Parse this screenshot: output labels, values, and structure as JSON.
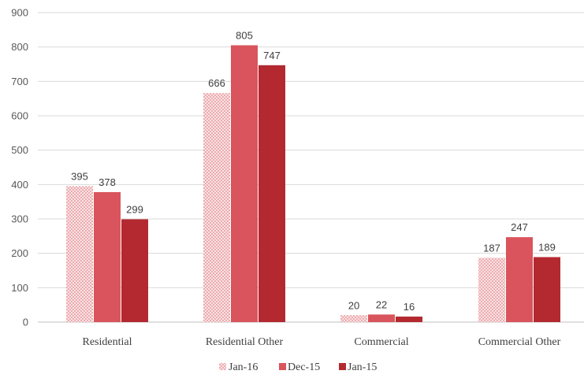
{
  "chart_data": {
    "type": "bar",
    "title": "",
    "xlabel": "",
    "ylabel": "",
    "ylim": [
      0,
      900
    ],
    "yticks": [
      0,
      100,
      200,
      300,
      400,
      500,
      600,
      700,
      800,
      900
    ],
    "grid": true,
    "legend_position": "bottom",
    "categories": [
      "Residential",
      "Residential Other",
      "Commercial",
      "Commercial Other"
    ],
    "series": [
      {
        "name": "Jan-16",
        "values": [
          395,
          666,
          20,
          187
        ],
        "color": "#f2a0a3",
        "pattern": "dotted"
      },
      {
        "name": "Dec-15",
        "values": [
          378,
          805,
          22,
          247
        ],
        "color": "#d9545c",
        "pattern": "solid"
      },
      {
        "name": "Jan-15",
        "values": [
          299,
          747,
          16,
          189
        ],
        "color": "#b3292f",
        "pattern": "solid"
      }
    ]
  }
}
